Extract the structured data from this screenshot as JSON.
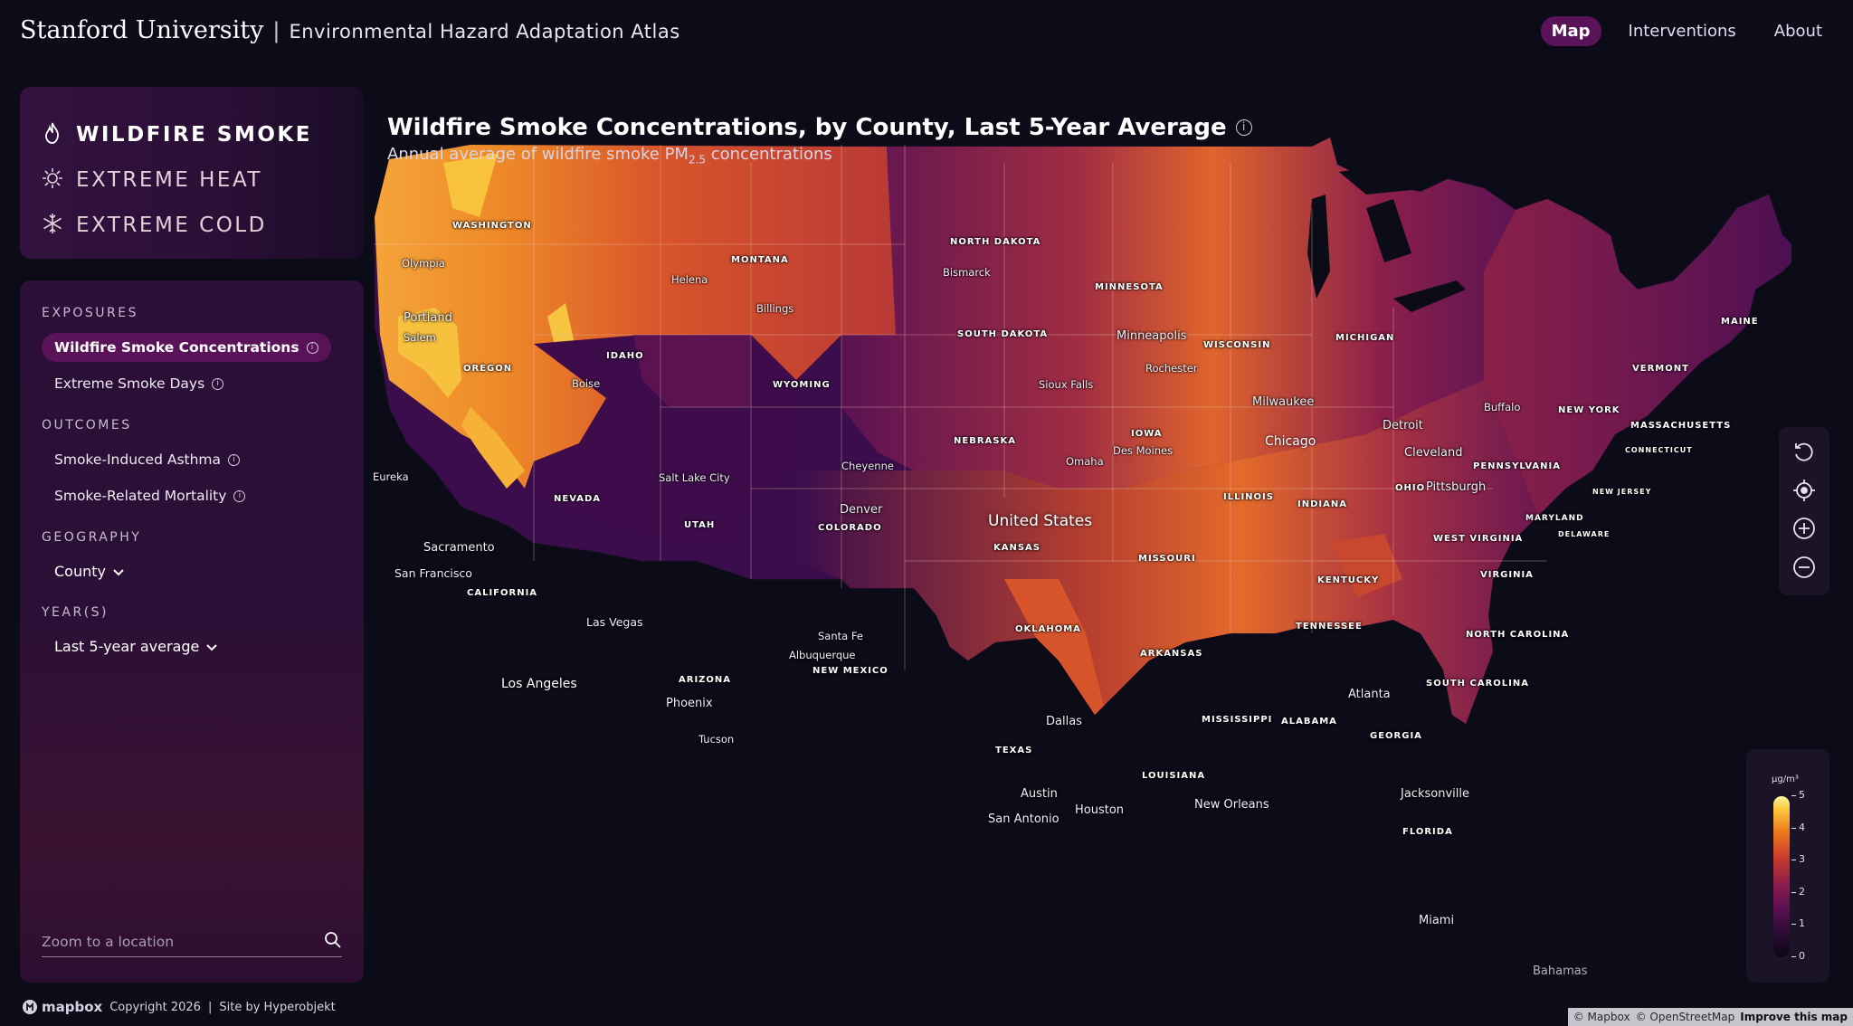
{
  "header": {
    "university": "Stanford University",
    "separator": "|",
    "atlas_title": "Environmental Hazard Adaptation Atlas",
    "nav": [
      {
        "label": "Map",
        "active": true
      },
      {
        "label": "Interventions",
        "active": false
      },
      {
        "label": "About",
        "active": false
      }
    ]
  },
  "hazards": [
    {
      "label": "WILDFIRE SMOKE",
      "icon": "flame-icon",
      "active": true
    },
    {
      "label": "EXTREME HEAT",
      "icon": "sun-icon",
      "active": false
    },
    {
      "label": "EXTREME COLD",
      "icon": "snowflake-icon",
      "active": false
    }
  ],
  "filters": {
    "exposures_title": "EXPOSURES",
    "exposures": [
      {
        "label": "Wildfire Smoke Concentrations",
        "active": true
      },
      {
        "label": "Extreme Smoke Days",
        "active": false
      }
    ],
    "outcomes_title": "OUTCOMES",
    "outcomes": [
      {
        "label": "Smoke-Induced Asthma",
        "active": false
      },
      {
        "label": "Smoke-Related Mortality",
        "active": false
      }
    ],
    "geography_title": "GEOGRAPHY",
    "geography_value": "County",
    "years_title": "YEAR(S)",
    "years_value": "Last 5-year average",
    "search_placeholder": "Zoom to a location",
    "info_glyph": "i"
  },
  "map": {
    "title": "Wildfire Smoke Concentrations, by County, Last 5-Year Average",
    "subtitle_pre": "Annual average of wildfire smoke PM",
    "subtitle_sub": "2.5",
    "subtitle_post": " concentrations",
    "country": "United States",
    "bahamas": "Bahamas",
    "states": [
      "WASHINGTON",
      "MONTANA",
      "NORTH DAKOTA",
      "MINNESOTA",
      "SOUTH DAKOTA",
      "OREGON",
      "IDAHO",
      "WYOMING",
      "WISCONSIN",
      "MICHIGAN",
      "NEBRASKA",
      "IOWA",
      "NEVADA",
      "UTAH",
      "COLORADO",
      "KANSAS",
      "ILLINOIS",
      "INDIANA",
      "OHIO",
      "MISSOURI",
      "CALIFORNIA",
      "ARIZONA",
      "NEW MEXICO",
      "OKLAHOMA",
      "ARKANSAS",
      "TEXAS",
      "LOUISIANA",
      "MISSISSIPPI",
      "ALABAMA",
      "GEORGIA",
      "TENNESSEE",
      "KENTUCKY",
      "NORTH CAROLINA",
      "SOUTH CAROLINA",
      "VIRGINIA",
      "WEST VIRGINIA",
      "PENNSYLVANIA",
      "NEW YORK",
      "VERMONT",
      "MAINE",
      "MASSACHUSETTS",
      "CONNECTICUT",
      "NEW JERSEY",
      "MARYLAND",
      "DELAWARE",
      "FLORIDA"
    ],
    "cities": [
      "Olympia",
      "Portland",
      "Salem",
      "Helena",
      "Billings",
      "Bismarck",
      "Boise",
      "Eureka",
      "Salt Lake City",
      "Cheyenne",
      "Denver",
      "Sacramento",
      "San Francisco",
      "Las Vegas",
      "Santa Fe",
      "Albuquerque",
      "Phoenix",
      "Tucson",
      "Sioux Falls",
      "Omaha",
      "Des Moines",
      "Minneapolis",
      "Rochester",
      "Milwaukee",
      "Detroit",
      "Cleveland",
      "Pittsburgh",
      "Buffalo",
      "Dallas",
      "Austin",
      "San Antonio",
      "Houston",
      "New Orleans",
      "Atlanta",
      "Jacksonville",
      "Miami"
    ],
    "major_cities": [
      "Los Angeles",
      "Chicago"
    ]
  },
  "controls": [
    {
      "icon": "reset-rotation-icon"
    },
    {
      "icon": "locate-icon"
    },
    {
      "icon": "zoom-in-icon"
    },
    {
      "icon": "zoom-out-icon"
    }
  ],
  "legend": {
    "unit": "µg/m³",
    "ticks": [
      "5",
      "4",
      "3",
      "2",
      "1",
      "0"
    ]
  },
  "footer": {
    "mapbox": "mapbox",
    "copyright": "Copyright 2026",
    "separator": "|",
    "credit": "Site by Hyperobjekt"
  },
  "attribution": {
    "mapbox": "© Mapbox",
    "osm": "© OpenStreetMap",
    "improve": "Improve this map"
  },
  "colors": {
    "accent": "#5a1258",
    "panel": "#2a0f36",
    "background": "#0c0b18"
  }
}
